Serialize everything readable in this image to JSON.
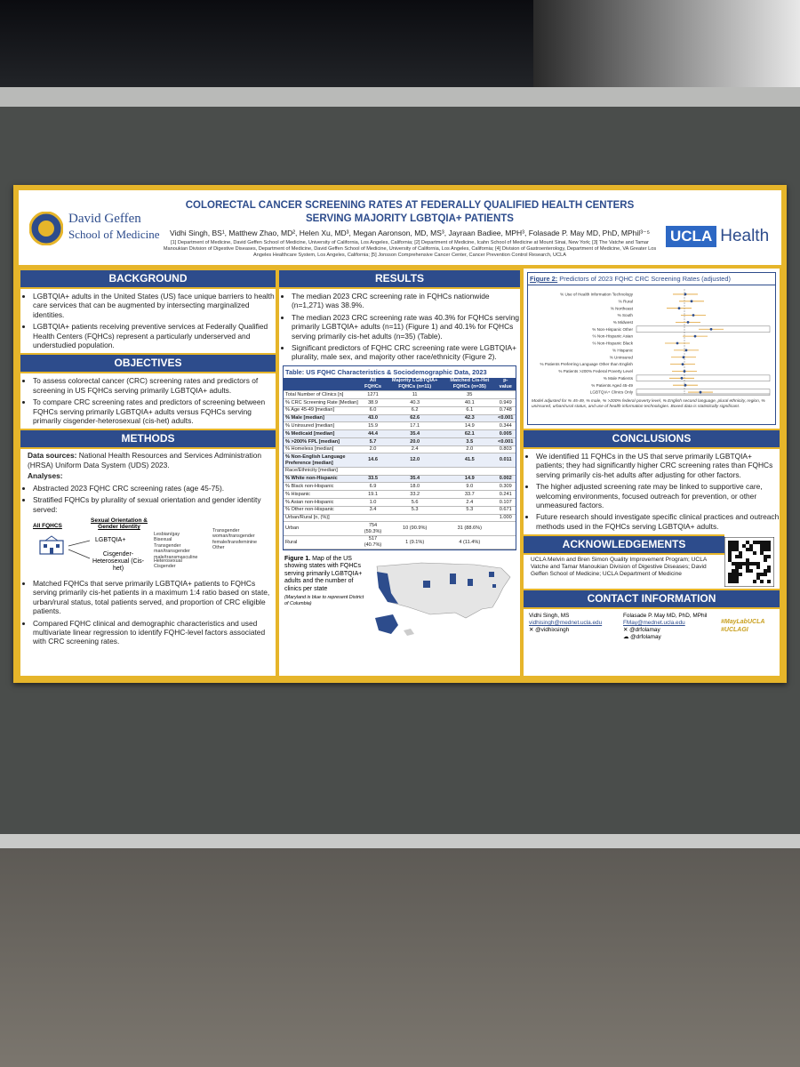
{
  "header": {
    "institution": [
      "David Geffen",
      "School of Medicine"
    ],
    "title": [
      "COLORECTAL CANCER SCREENING RATES AT FEDERALLY QUALIFIED HEALTH CENTERS",
      "SERVING MAJORITY LGBTQIA+ PATIENTS"
    ],
    "authors": "Vidhi Singh, BS¹, Matthew Zhao, MD², Helen Xu, MD³, Megan Aaronson, MD, MS³, Jayraan Badiee, MPH³, Folasade P. May MD, PhD, MPhil³⁻⁵",
    "affiliations": "[1] Department of Medicine, David Geffen School of Medicine, University of California, Los Angeles, California; [2] Department of Medicine, Icahn School of Medicine at Mount Sinai, New York; [3] The Vatche and Tamar Manoukian Division of Digestive Diseases, Department of Medicine, David Geffen School of Medicine, University of California, Los Angeles, California; [4] Division of Gastroenterology, Department of Medicine, VA Greater Los Angeles Healthcare System, Los Angeles, California; [5] Jonsson Comprehensive Cancer Center, Cancer Prevention Control Research, UCLA",
    "brand": [
      "UCLA",
      "Health"
    ]
  },
  "background": {
    "heading": "BACKGROUND",
    "bullets": [
      "LGBTQIA+ adults in the United States (US) face unique barriers to health care services that can be augmented by intersecting marginalized identities.",
      "LGBTQIA+ patients receiving preventive services at Federally Qualified Health Centers (FQHCs) represent a particularly underserved and understudied population."
    ]
  },
  "objectives": {
    "heading": "OBJECTIVES",
    "bullets": [
      "To assess colorectal cancer (CRC) screening rates and predictors of screening in US FQHCs serving primarily LGBTQIA+ adults.",
      "To compare CRC screening rates and predictors of screening between FQHCs serving primarily LGBTQIA+ adults versus FQHCs serving primarily cisgender-heterosexual (cis-het) adults."
    ]
  },
  "methods": {
    "heading": "METHODS",
    "data_sources_label": "Data sources:",
    "data_sources": "National Health Resources and Services Administration (HRSA) Uniform Data System (UDS) 2023.",
    "analyses_label": "Analyses:",
    "bullets_a": [
      "Abstracted 2023 FQHC CRC screening rates (age 45-75).",
      "Stratified FQHCs by plurality of sexual orientation and gender identity served:"
    ],
    "diagram": {
      "root": "All FQHCS",
      "heading": "Sexual Orientation & Gender Identity",
      "group_a": "LGBTQIA+",
      "group_b": "Cisgender-Heterosexual (Cis-het)",
      "list_a1": [
        "Lesbian/gay",
        "Bisexual",
        "Transgender man/transgender male/transmasculine"
      ],
      "list_a2": [
        "Transgender woman/transgender female/transfeminine",
        "Other"
      ],
      "list_b": [
        "Heterosexual",
        "Cisgender"
      ]
    },
    "bullets_b": [
      "Matched FQHCs that serve primarily LGBTQIA+ patients to FQHCs serving primarily cis-het patients in a maximum 1:4 ratio based on state, urban/rural status, total patients served, and proportion of CRC eligible patients.",
      "Compared FQHC clinical and demographic characteristics and used multivariate linear regression to identify FQHC-level factors associated with CRC screening rates."
    ]
  },
  "results": {
    "heading": "RESULTS",
    "bullets": [
      "The median 2023 CRC screening rate in FQHCs nationwide (n=1,271) was 38.9%.",
      "The median 2023 CRC screening rate was 40.3% for FQHCs serving primarily LGBTQIA+ adults (n=11) (Figure 1) and 40.1% for FQHCs serving primarily cis-het adults (n=35) (Table).",
      "Significant predictors of FQHC CRC screening rate were LGBTQIA+ plurality, male sex, and majority other race/ethnicity (Figure 2)."
    ]
  },
  "table": {
    "title": "Table: US FQHC Characteristics & Sociodemographic Data, 2023",
    "columns": [
      null,
      "All FQHCs",
      "Majority LGBTQIA+ FQHCs (n=11)",
      "Matched Cis-Het FQHCs (n=35)",
      "p-value"
    ],
    "rows": [
      {
        "cells": [
          "Total Number of Clinics [n]",
          "1271",
          "11",
          "35",
          null
        ]
      },
      {
        "cells": [
          "% CRC Screening Rate [Median]",
          "38.9",
          "40.3",
          "40.1",
          "0.949"
        ]
      },
      {
        "cells": [
          "% Age 45-49 [median]",
          "6.0",
          "6.2",
          "6.1",
          "0.748"
        ]
      },
      {
        "cells": [
          "% Male [median]",
          "43.0",
          "62.6",
          "42.3",
          "<0.001"
        ],
        "emphasis": true
      },
      {
        "cells": [
          "% Uninsured [median]",
          "15.9",
          "17.1",
          "14.9",
          "0.344"
        ]
      },
      {
        "cells": [
          "% Medicaid [median]",
          "44.4",
          "35.4",
          "62.1",
          "0.005"
        ],
        "emphasis": true
      },
      {
        "cells": [
          "% >200% FPL [median]",
          "5.7",
          "20.0",
          "3.5",
          "<0.001"
        ],
        "emphasis": true
      },
      {
        "cells": [
          "% Homeless [median]",
          "2.0",
          "2.4",
          "2.0",
          "0.803"
        ]
      },
      {
        "cells": [
          "% Non-English Language Preference [median]",
          "14.6",
          "12.0",
          "41.5",
          "0.011"
        ],
        "emphasis": true
      },
      {
        "cells": [
          "Race/Ethnicity [median]",
          null,
          null,
          null,
          null
        ]
      },
      {
        "cells": [
          "% White non-Hispanic",
          "33.5",
          "35.4",
          "14.9",
          "0.002"
        ],
        "emphasis": true
      },
      {
        "cells": [
          "% Black non-Hispanic",
          "6.9",
          "18.0",
          "9.0",
          "0.309"
        ]
      },
      {
        "cells": [
          "% Hispanic",
          "19.1",
          "33.2",
          "33.7",
          "0.241"
        ]
      },
      {
        "cells": [
          "% Asian non-Hispanic",
          "1.0",
          "5.6",
          "2.4",
          "0.107"
        ]
      },
      {
        "cells": [
          "% Other non-Hispanic",
          "3.4",
          "5.3",
          "5.3",
          "0.671"
        ]
      },
      {
        "cells": [
          "Urban/Rural [n, (%)]",
          null,
          null,
          null,
          "1.000"
        ]
      },
      {
        "cells": [
          "Urban",
          "754 (59.3%)",
          "10 (90.9%)",
          "31 (88.6%)",
          null
        ]
      },
      {
        "cells": [
          "Rural",
          "517 (40.7%)",
          "1 (9.1%)",
          "4 (11.4%)",
          null
        ]
      }
    ]
  },
  "figure1": {
    "label": "Figure 1.",
    "caption": "Map of the US showing states with FQHCs serving primarily LGBTQIA+ adults and the number of clinics per state",
    "note": "(Maryland is blue to represent District of Columbia)"
  },
  "figure2": {
    "label": "Figure 2:",
    "title": "Predictors of 2023 FQHC CRC Screening Rates (adjusted)",
    "labels": [
      "% Use of Health Information Technology",
      "% Rural",
      "% Northeast",
      "% South",
      "% Midwest",
      "% Non-Hispanic Other",
      "% Non-Hispanic Asian",
      "% Non-Hispanic Black",
      "% Hispanic",
      "% Uninsured",
      "% Patients Preferring Language Other than English",
      "% Patients >200% Federal Poverty Level",
      "% Male Patients",
      "% Patients Aged 45-49",
      "LGBTQIA+ Clinics Only"
    ],
    "note": "Model adjusted for % 45-49, % male, % >200% federal poverty level, % English second language, plural ethnicity, region, % uninsured, urban/rural status, and use of health information technologies. Boxed data is statistically significant."
  },
  "conclusions": {
    "heading": "CONCLUSIONS",
    "bullets": [
      "We identified 11 FQHCs in the US that serve primarily LGBTQIA+ patients; they had significantly higher CRC screening rates than FQHCs serving primarily cis-het adults after adjusting for other factors.",
      "The higher adjusted screening rate may be linked to supportive care, welcoming environments, focused outreach for prevention, or other unmeasured factors.",
      "Future research should investigate specific clinical practices and outreach methods used in the FQHCs serving LGBTQIA+ adults."
    ]
  },
  "acknowledgements": {
    "heading": "ACKNOWLEDGEMENTS",
    "text": "UCLA Melvin and Bren Simon Quality Improvement Program; UCLA Vatche and Tamar Manoukian Division of Digestive Diseases; David Geffen School of Medicine; UCLA Department of Medicine"
  },
  "contact": {
    "heading": "CONTACT INFORMATION",
    "people": [
      {
        "name": "Vidhi Singh, MS",
        "email": "vidhisingh@mednet.ucla.edu",
        "handles": [
          "@vidhixsingh"
        ]
      },
      {
        "name": "Folasade P. May MD, PhD, MPhil",
        "email": "FMay@mednet.ucla.edu",
        "handles": [
          "@drfolamay",
          "@drfolamay"
        ]
      }
    ],
    "hashtags": [
      "#MayLabUCLA",
      "#UCLAGI"
    ]
  }
}
